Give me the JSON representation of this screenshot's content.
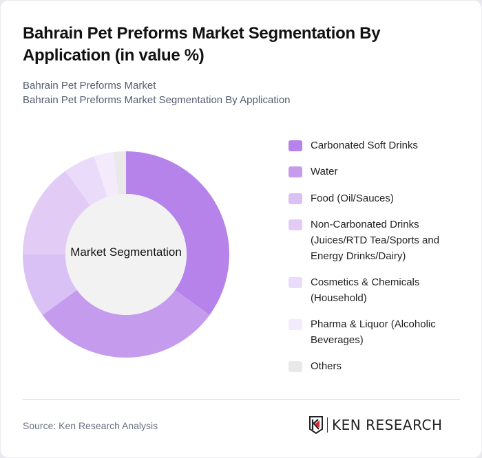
{
  "header": {
    "title": "Bahrain Pet Preforms Market Segmentation By Application (in value %)",
    "subtitle_line1": "Bahrain Pet Preforms Market",
    "subtitle_line2": "Bahrain Pet Preforms Market Segmentation By Application"
  },
  "chart": {
    "center_label": "Market Segmentation"
  },
  "legend": [
    {
      "label": "Carbonated Soft Drinks",
      "color": "#b583ea"
    },
    {
      "label": "Water",
      "color": "#c59ced"
    },
    {
      "label": "Food (Oil/Sauces)",
      "color": "#d9c0f5"
    },
    {
      "label": "Non-Carbonated Drinks (Juices/RTD Tea/Sports and Energy Drinks/Dairy)",
      "color": "#e2ccf6"
    },
    {
      "label": "Cosmetics & Chemicals (Household)",
      "color": "#eadbfa"
    },
    {
      "label": "Pharma & Liquor (Alcoholic Beverages)",
      "color": "#f3ebfc"
    },
    {
      "label": "Others",
      "color": "#e9e9e9"
    }
  ],
  "footer": {
    "source": "Source: Ken Research Analysis",
    "logo_text": "KEN RESEARCH"
  },
  "chart_data": {
    "type": "pie",
    "variant": "donut",
    "title": "Bahrain Pet Preforms Market Segmentation By Application (in value %)",
    "subtitle": "Bahrain Pet Preforms Market Segmentation By Application",
    "center_label": "Market Segmentation",
    "categories": [
      "Carbonated Soft Drinks",
      "Water",
      "Food (Oil/Sauces)",
      "Non-Carbonated Drinks (Juices/RTD Tea/Sports and Energy Drinks/Dairy)",
      "Cosmetics & Chemicals (Household)",
      "Pharma & Liquor (Alcoholic Beverages)",
      "Others"
    ],
    "values": [
      35,
      30,
      10,
      15,
      5,
      3,
      2
    ],
    "colors": [
      "#b583ea",
      "#c59ced",
      "#d9c0f5",
      "#e2ccf6",
      "#eadbfa",
      "#f3ebfc",
      "#e9e9e9"
    ],
    "unit": "%",
    "start_angle": "top, clockwise",
    "legend_position": "right"
  }
}
